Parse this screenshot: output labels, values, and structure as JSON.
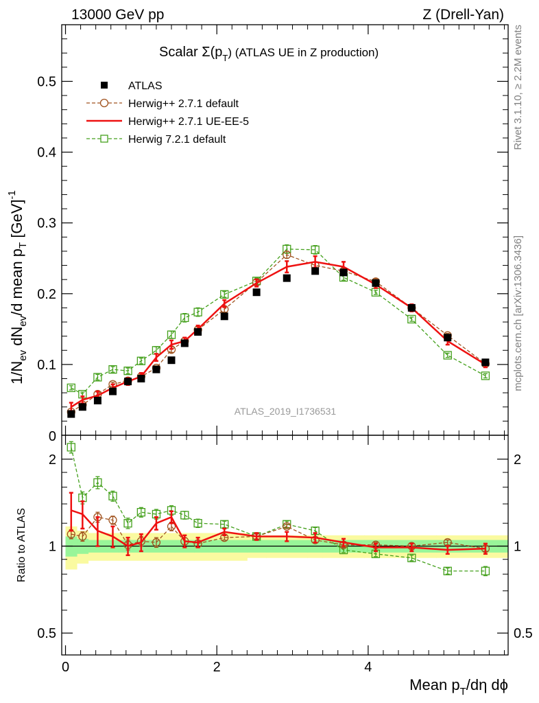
{
  "header": {
    "left_label": "13000 GeV pp",
    "right_label": "Z (Drell-Yan)"
  },
  "side_labels": {
    "rivet": "Rivet 3.1.10, ≥ 2.2M events",
    "mcplots": "mcplots.cern.ch [arXiv:1306.3436]"
  },
  "watermark": "ATLAS_2019_I1736531",
  "colors": {
    "atlas": "#000000",
    "herwig_271_default": "#a0521e",
    "herwig_271_ueee5": "#ee1111",
    "herwig_721_default": "#44a01c",
    "band_green": "#99f599",
    "band_yellow": "#fafaa0"
  },
  "chart_data": [
    {
      "type": "line",
      "panel": "main",
      "title_prefix": "Scalar Σ(p",
      "title_sub": "T",
      "title_suffix": ") (ATLAS UE in Z production)",
      "ylabel": "1/N_ev dN_ev/d mean p_T [GeV]^-1",
      "ylim": [
        0,
        0.58
      ],
      "xlim": [
        -0.05,
        5.85
      ],
      "yticks": [
        0.1,
        0.2,
        0.3,
        0.4,
        0.5
      ],
      "ytick_labels": [
        "0.1",
        "0.2",
        "0.3",
        "0.4",
        "0.5"
      ],
      "y_zero_label": "0",
      "legend_position": "top-left",
      "x": [
        0.075,
        0.225,
        0.425,
        0.625,
        0.825,
        1.0,
        1.2,
        1.4,
        1.575,
        1.75,
        2.1,
        2.525,
        2.925,
        3.3,
        3.675,
        4.1,
        4.575,
        5.05,
        5.55
      ],
      "series": [
        {
          "name": "ATLAS",
          "style": "square-filled",
          "values": [
            0.03,
            0.04,
            0.049,
            0.062,
            0.076,
            0.08,
            0.093,
            0.106,
            0.13,
            0.146,
            0.168,
            0.202,
            0.222,
            0.232,
            0.23,
            0.215,
            0.18,
            0.138,
            0.103
          ],
          "errors": [
            0.001,
            0.001,
            0.001,
            0.001,
            0.001,
            0.001,
            0.001,
            0.001,
            0.001,
            0.001,
            0.001,
            0.001,
            0.001,
            0.001,
            0.001,
            0.001,
            0.001,
            0.001,
            0.001
          ]
        },
        {
          "name": "Herwig++ 2.7.1 default",
          "style": "circle-open-dashed",
          "values": [
            0.033,
            0.043,
            0.058,
            0.072,
            0.077,
            0.083,
            0.095,
            0.121,
            0.133,
            0.149,
            0.178,
            0.216,
            0.255,
            0.24,
            0.232,
            0.217,
            0.18,
            0.141,
            0.101
          ],
          "errors": [
            0.002,
            0.002,
            0.003,
            0.003,
            0.003,
            0.003,
            0.003,
            0.004,
            0.004,
            0.004,
            0.004,
            0.004,
            0.005,
            0.005,
            0.004,
            0.004,
            0.003,
            0.003,
            0.003
          ]
        },
        {
          "name": "Herwig++ 2.7.1 UE-EE-5",
          "style": "solid",
          "values": [
            0.04,
            0.05,
            0.056,
            0.067,
            0.076,
            0.083,
            0.11,
            0.128,
            0.133,
            0.15,
            0.186,
            0.215,
            0.238,
            0.245,
            0.238,
            0.213,
            0.18,
            0.133,
            0.1
          ],
          "errors": [
            0.006,
            0.005,
            0.006,
            0.005,
            0.005,
            0.005,
            0.005,
            0.006,
            0.005,
            0.005,
            0.005,
            0.005,
            0.008,
            0.008,
            0.007,
            0.005,
            0.005,
            0.005,
            0.004
          ]
        },
        {
          "name": "Herwig 7.2.1 default",
          "style": "square-open-dashed",
          "values": [
            0.067,
            0.058,
            0.082,
            0.093,
            0.091,
            0.105,
            0.12,
            0.142,
            0.166,
            0.174,
            0.199,
            0.218,
            0.263,
            0.262,
            0.223,
            0.202,
            0.164,
            0.113,
            0.084
          ],
          "errors": [
            0.003,
            0.003,
            0.004,
            0.004,
            0.004,
            0.004,
            0.005,
            0.005,
            0.006,
            0.006,
            0.004,
            0.004,
            0.006,
            0.006,
            0.004,
            0.003,
            0.003,
            0.003,
            0.003
          ]
        }
      ]
    },
    {
      "type": "line",
      "panel": "ratio",
      "ylabel": "Ratio to ATLAS",
      "ylim": [
        0.42,
        2.42
      ],
      "xlim": [
        -0.05,
        5.85
      ],
      "yticks": [
        0.5,
        1,
        2
      ],
      "ytick_labels": [
        "0.5",
        "1",
        "2"
      ],
      "xticks": [
        0,
        2,
        4
      ],
      "xtick_labels": [
        "0",
        "2",
        "4"
      ],
      "xlabel_prefix": "Mean p",
      "xlabel_sub": "T",
      "xlabel_suffix": "/dη dϕ",
      "bin_edges": [
        0.0,
        0.15,
        0.3,
        0.55,
        0.7,
        0.95,
        1.05,
        1.35,
        1.45,
        1.7,
        1.8,
        2.4,
        2.65,
        3.2,
        3.4,
        3.95,
        4.25,
        4.9,
        5.2,
        5.85
      ],
      "band_green_half": [
        0.08,
        0.06,
        0.05,
        0.05,
        0.05,
        0.05,
        0.05,
        0.05,
        0.05,
        0.05,
        0.05,
        0.05,
        0.05,
        0.05,
        0.05,
        0.05,
        0.05,
        0.05,
        0.05
      ],
      "band_yellow_half": [
        0.17,
        0.13,
        0.11,
        0.11,
        0.11,
        0.11,
        0.11,
        0.11,
        0.11,
        0.11,
        0.11,
        0.09,
        0.09,
        0.09,
        0.09,
        0.09,
        0.09,
        0.09,
        0.09
      ],
      "x": [
        0.075,
        0.225,
        0.425,
        0.625,
        0.825,
        1.0,
        1.2,
        1.4,
        1.575,
        1.75,
        2.1,
        2.525,
        2.925,
        3.3,
        3.675,
        4.1,
        4.575,
        5.05,
        5.55
      ],
      "series": [
        {
          "name": "Herwig++ 2.7.1 default",
          "style": "circle-open-dashed",
          "values": [
            1.1,
            1.08,
            1.26,
            1.23,
            1.01,
            1.04,
            1.03,
            1.17,
            1.04,
            1.02,
            1.07,
            1.08,
            1.17,
            1.05,
            1.01,
            1.01,
            1.0,
            1.03,
            0.98
          ],
          "errors": [
            0.04,
            0.04,
            0.05,
            0.04,
            0.04,
            0.04,
            0.04,
            0.04,
            0.03,
            0.03,
            0.02,
            0.02,
            0.02,
            0.02,
            0.02,
            0.02,
            0.02,
            0.02,
            0.02
          ]
        },
        {
          "name": "Herwig++ 2.7.1 UE-EE-5",
          "style": "solid",
          "values": [
            1.33,
            1.29,
            1.13,
            1.08,
            1.0,
            1.03,
            1.2,
            1.26,
            1.04,
            1.03,
            1.12,
            1.08,
            1.08,
            1.07,
            1.03,
            0.99,
            0.99,
            0.97,
            0.98
          ],
          "errors": [
            0.2,
            0.14,
            0.13,
            0.09,
            0.07,
            0.07,
            0.06,
            0.06,
            0.05,
            0.04,
            0.03,
            0.03,
            0.04,
            0.04,
            0.03,
            0.03,
            0.03,
            0.03,
            0.04
          ]
        },
        {
          "name": "Herwig 7.2.1 default",
          "style": "square-open-dashed",
          "values": [
            2.2,
            1.47,
            1.66,
            1.49,
            1.2,
            1.31,
            1.29,
            1.33,
            1.28,
            1.2,
            1.19,
            1.08,
            1.19,
            1.13,
            0.97,
            0.94,
            0.91,
            0.82,
            0.82
          ],
          "errors": [
            0.1,
            0.07,
            0.08,
            0.06,
            0.05,
            0.05,
            0.05,
            0.05,
            0.04,
            0.04,
            0.03,
            0.03,
            0.03,
            0.03,
            0.02,
            0.02,
            0.02,
            0.02,
            0.03
          ]
        }
      ]
    }
  ]
}
